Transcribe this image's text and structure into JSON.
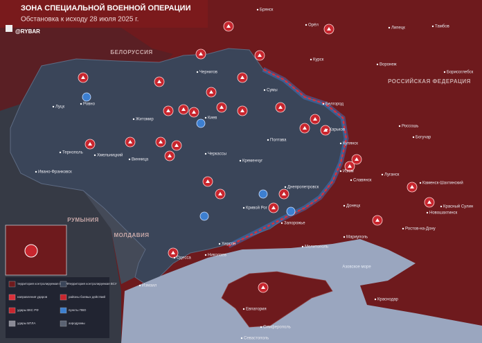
{
  "header": {
    "title": "ЗОНА СПЕЦИАЛЬНОЙ ВОЕННОЙ ОПЕРАЦИИ",
    "subtitle": "Обстановка к исходу 28 июля 2025 г.",
    "brand": "@RYBAR"
  },
  "countries": [
    "БЕЛОРУССИЯ",
    "РОССИЙСКАЯ ФЕДЕРАЦИЯ",
    "РУМЫНИЯ",
    "МОЛДАВИЯ"
  ],
  "seas": [
    "Азовское море"
  ],
  "cities": [
    "Брянск",
    "Орёл",
    "Липецк",
    "Тамбов",
    "Курск",
    "Воронеж",
    "Борисоглебск",
    "Белгород",
    "Харьков",
    "Сумы",
    "Чернигов",
    "Киев",
    "Житомир",
    "Ровно",
    "Луцк",
    "Тернополь",
    "Ивано-Франковск",
    "Хмельницкий",
    "Винница",
    "Черкассы",
    "Полтава",
    "Кременчуг",
    "Днепропетровск",
    "Запорожье",
    "Кривой Рог",
    "Николаев",
    "Одесса",
    "Херсон",
    "Мелитополь",
    "Мариуполь",
    "Донецк",
    "Луганск",
    "Ростов-на-Дону",
    "Краснодар",
    "Симферополь",
    "Севастополь",
    "Евпатория",
    "Купянск",
    "Изюм",
    "Славянск",
    "Россошь",
    "Богучар",
    "Каменск-Шахтинский",
    "Новошахтинск",
    "Красный Сулин",
    "Измаил"
  ],
  "legend": [
    "территория контролируемая ВС РФ",
    "территория контролируемая ВСУ",
    "направления ударов",
    "районы боевых действий",
    "удары ВКС РФ",
    "пункты ПВО",
    "удары БПЛА",
    "аэродромы"
  ]
}
